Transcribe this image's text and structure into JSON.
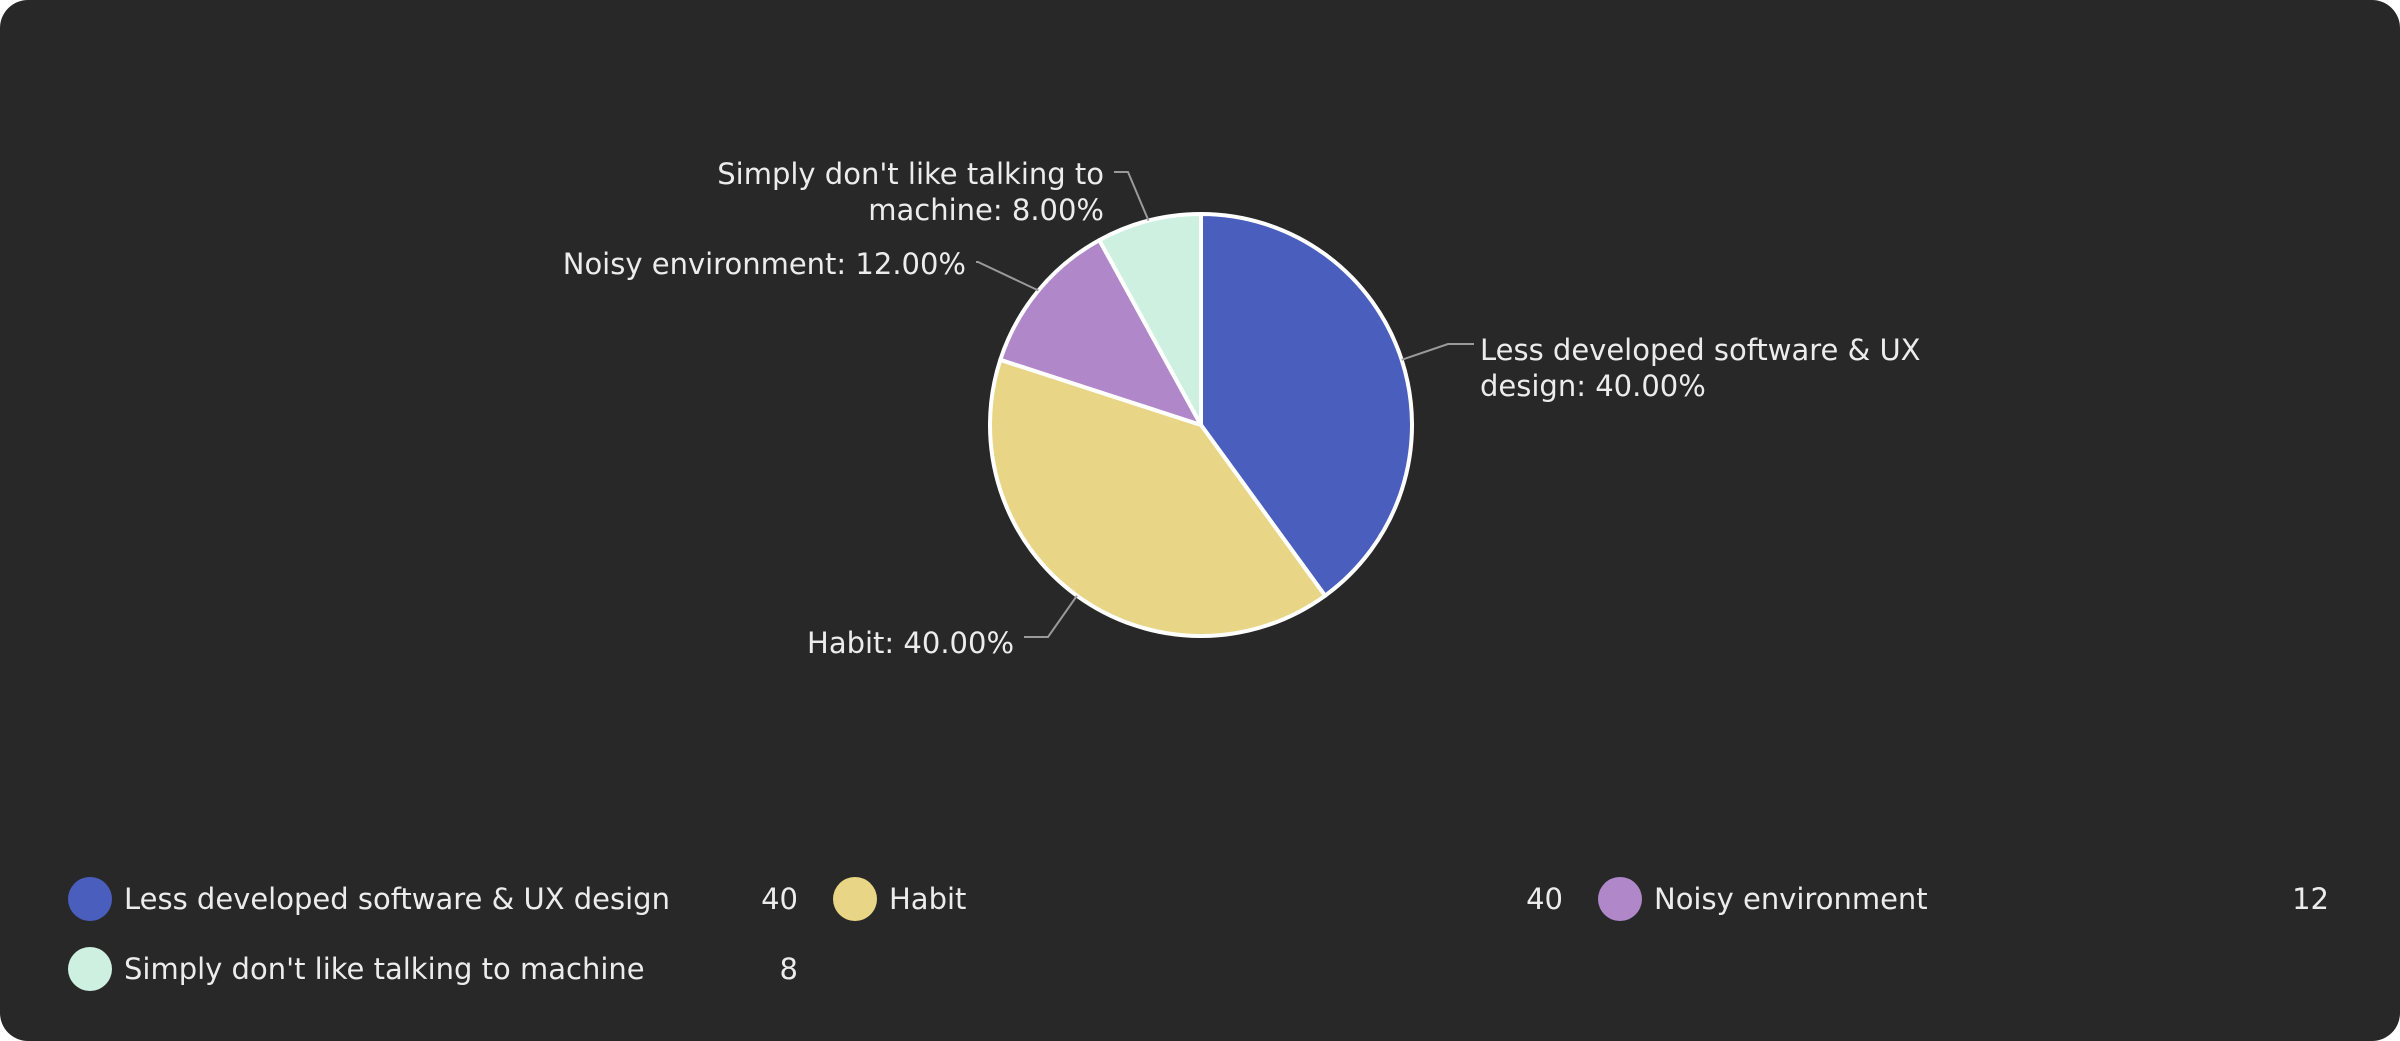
{
  "chart_data": {
    "type": "pie",
    "categories": [
      "Less developed software & UX design",
      "Habit",
      "Noisy environment",
      "Simply don't like talking to machine"
    ],
    "values": [
      40,
      40,
      12,
      8
    ],
    "colors": [
      "#4a5fbd",
      "#e8d586",
      "#b088c9",
      "#cdf0e1"
    ],
    "slice_labels": [
      [
        "Less developed software & UX",
        "design: 40.00%"
      ],
      [
        "Habit: 40.00%"
      ],
      [
        "Noisy environment: 12.00%"
      ],
      [
        "Simply don't like talking to",
        "machine: 8.00%"
      ]
    ],
    "legend": {
      "placement": "bottom",
      "items": [
        {
          "label": "Less developed software & UX design",
          "value": "40"
        },
        {
          "label": "Habit",
          "value": "40"
        },
        {
          "label": "Noisy environment",
          "value": "12"
        },
        {
          "label": "Simply don't like talking to machine",
          "value": "8"
        }
      ]
    }
  }
}
